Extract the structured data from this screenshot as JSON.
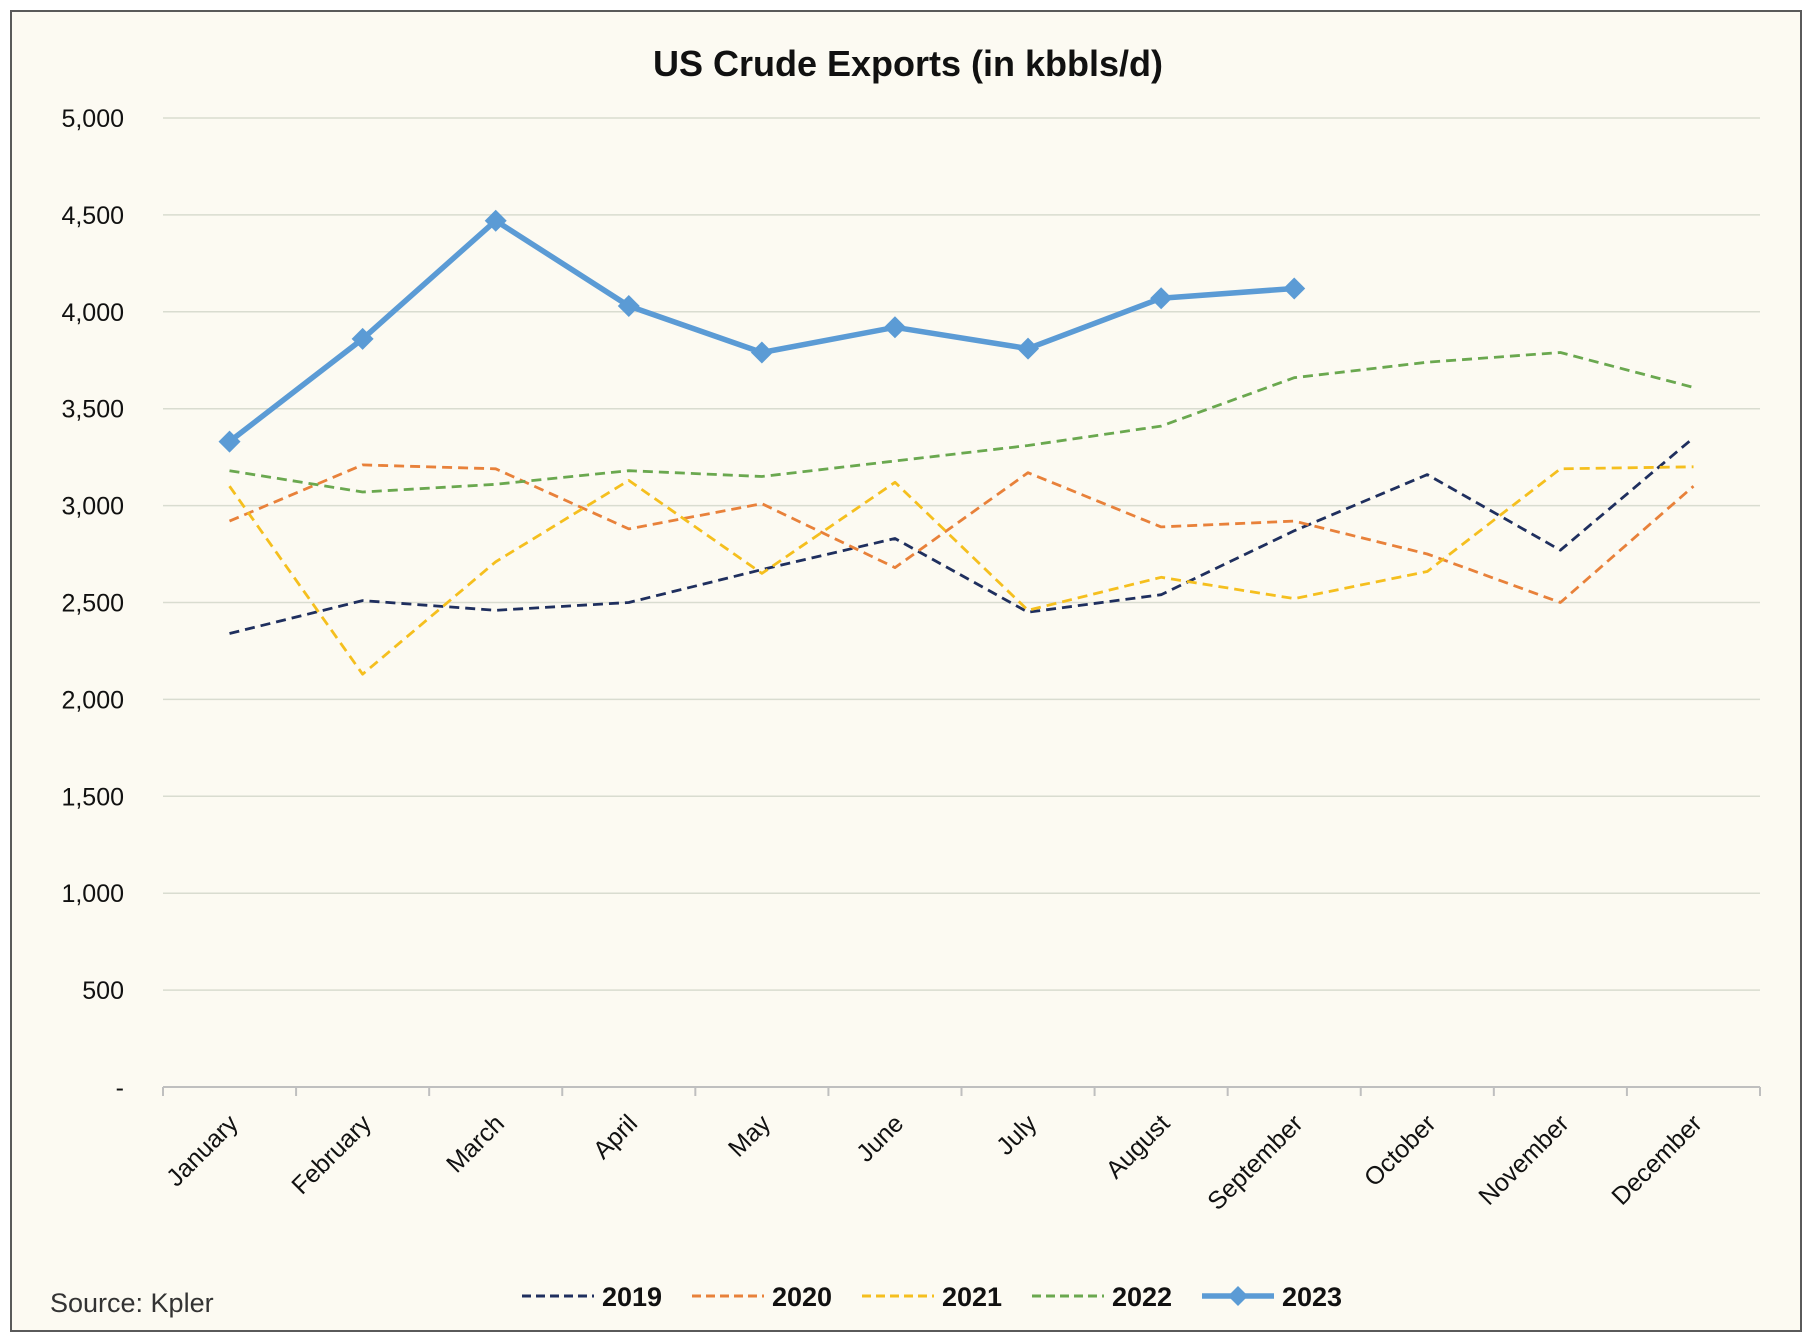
{
  "chart_data": {
    "type": "line",
    "title": "US Crude Exports (in kbbls/d)",
    "source": "Source: Kpler",
    "categories": [
      "January",
      "February",
      "March",
      "April",
      "May",
      "June",
      "July",
      "August",
      "September",
      "October",
      "November",
      "December"
    ],
    "ylim": [
      0,
      5000
    ],
    "yticks": [
      0,
      500,
      1000,
      1500,
      2000,
      2500,
      3000,
      3500,
      4000,
      4500,
      5000
    ],
    "ytick_labels": [
      "-",
      "500",
      "1,000",
      "1,500",
      "2,000",
      "2,500",
      "3,000",
      "3,500",
      "4,000",
      "4,500",
      "5,000"
    ],
    "grid": true,
    "legend_position": "bottom",
    "series": [
      {
        "name": "2019",
        "color": "#1f2f5e",
        "style": "dashed",
        "values": [
          2340,
          2510,
          2460,
          2500,
          2670,
          2830,
          2450,
          2540,
          2870,
          3160,
          2770,
          3350
        ]
      },
      {
        "name": "2020",
        "color": "#e8813a",
        "style": "dashed",
        "values": [
          2920,
          3210,
          3190,
          2880,
          3010,
          2680,
          3170,
          2890,
          2920,
          2750,
          2500,
          3100
        ]
      },
      {
        "name": "2021",
        "color": "#f5bf1e",
        "style": "dashed",
        "values": [
          3100,
          2130,
          2710,
          3130,
          2650,
          3120,
          2460,
          2630,
          2520,
          2660,
          3190,
          3200
        ]
      },
      {
        "name": "2022",
        "color": "#6aa84f",
        "style": "dashed",
        "values": [
          3180,
          3070,
          3110,
          3180,
          3150,
          3230,
          3310,
          3410,
          3660,
          3740,
          3790,
          3610
        ]
      },
      {
        "name": "2023",
        "color": "#5b9bd5",
        "style": "solid-markers",
        "values": [
          3330,
          3860,
          4470,
          4030,
          3790,
          3920,
          3810,
          4070,
          4120,
          null,
          null,
          null
        ]
      }
    ]
  }
}
